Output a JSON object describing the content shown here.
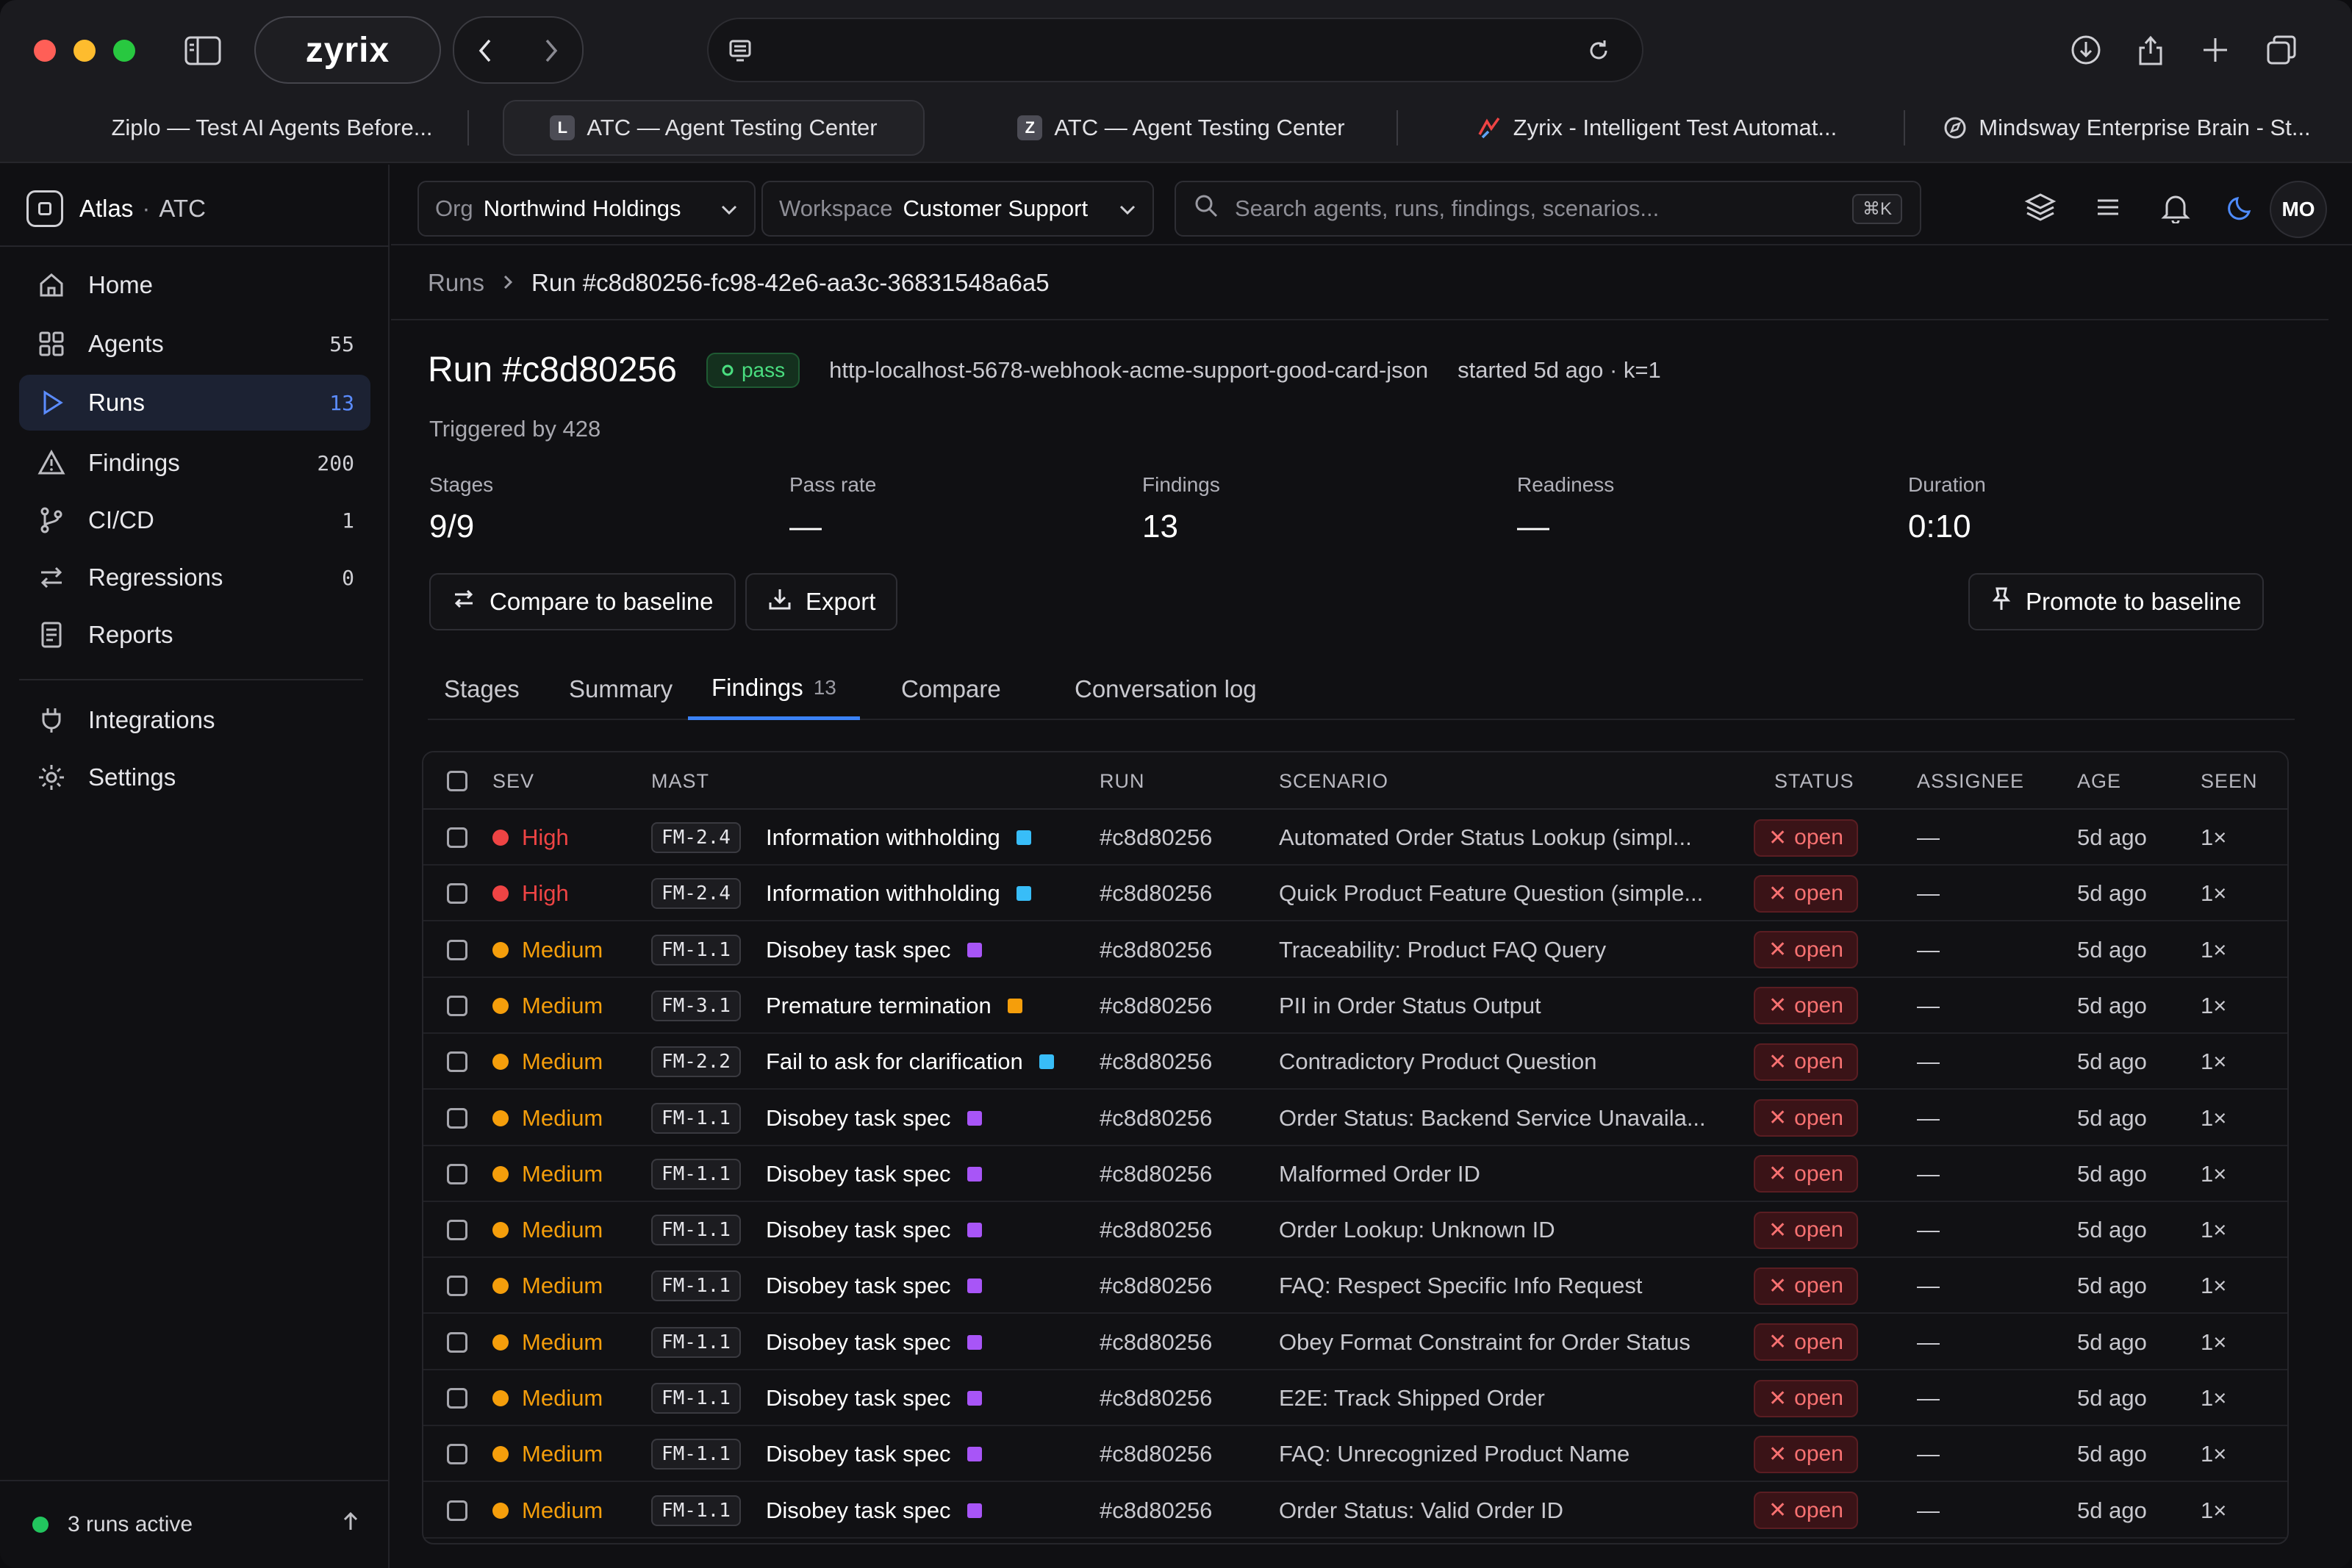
{
  "browser": {
    "brand": "zyrix",
    "tabs": [
      {
        "label": "Ziplo — Test AI Agents Before...",
        "favicon": ""
      },
      {
        "label": "ATC — Agent Testing Center",
        "favicon": "L"
      },
      {
        "label": "ATC — Agent Testing Center",
        "favicon": "Z"
      },
      {
        "label": "Zyrix - Intelligent Test Automat...",
        "favicon": ""
      },
      {
        "label": "Mindsway Enterprise Brain - St...",
        "favicon": ""
      }
    ]
  },
  "sidebar": {
    "app_name": "Atlas",
    "app_section": "ATC",
    "items": [
      {
        "label": "Home",
        "count": "",
        "icon": "home-icon"
      },
      {
        "label": "Agents",
        "count": "55",
        "icon": "grid-icon"
      },
      {
        "label": "Runs",
        "count": "13",
        "icon": "play-icon"
      },
      {
        "label": "Findings",
        "count": "200",
        "icon": "warning-icon"
      },
      {
        "label": "CI/CD",
        "count": "1",
        "icon": "branch-icon"
      },
      {
        "label": "Regressions",
        "count": "0",
        "icon": "swap-icon"
      },
      {
        "label": "Reports",
        "count": "",
        "icon": "report-icon"
      },
      {
        "label": "Integrations",
        "count": "",
        "icon": "plug-icon"
      },
      {
        "label": "Settings",
        "count": "",
        "icon": "gear-icon"
      }
    ],
    "footer": "3 runs active"
  },
  "topbar": {
    "org_label": "Org",
    "org_value": "Northwind Holdings",
    "workspace_label": "Workspace",
    "workspace_value": "Customer Support",
    "search_placeholder": "Search agents, runs, findings, scenarios...",
    "search_shortcut": "⌘K",
    "avatar": "MO"
  },
  "breadcrumb": {
    "parent": "Runs",
    "current": "Run #c8d80256-fc98-42e6-aa3c-36831548a6a5"
  },
  "run": {
    "title": "Run #c8d80256",
    "status": "pass",
    "slug": "http-localhost-5678-webhook-acme-support-good-card-json",
    "meta": "started 5d ago · k=1",
    "triggered": "Triggered by 428",
    "stats": [
      {
        "label": "Stages",
        "value": "9/9"
      },
      {
        "label": "Pass rate",
        "value": "—"
      },
      {
        "label": "Findings",
        "value": "13"
      },
      {
        "label": "Readiness",
        "value": "—"
      },
      {
        "label": "Duration",
        "value": "0:10"
      }
    ]
  },
  "actions": {
    "compare": "Compare to baseline",
    "export": "Export",
    "promote": "Promote to baseline"
  },
  "tabs": [
    {
      "label": "Stages",
      "count": ""
    },
    {
      "label": "Summary",
      "count": ""
    },
    {
      "label": "Findings",
      "count": "13"
    },
    {
      "label": "Compare",
      "count": ""
    },
    {
      "label": "Conversation log",
      "count": ""
    }
  ],
  "table": {
    "columns": [
      "SEV",
      "MAST",
      "RUN",
      "SCENARIO",
      "STATUS",
      "ASSIGNEE",
      "AGE",
      "SEEN"
    ],
    "colors": {
      "high": "#ef4444",
      "medium": "#f59e0b",
      "blue": "#38bdf8",
      "purple": "#a855f7",
      "orange": "#f59e0b"
    },
    "rows": [
      {
        "sev": "High",
        "code": "FM-2.4",
        "mast": "Information withholding",
        "tag": "blue",
        "run": "#c8d80256",
        "scenario": "Automated Order Status Lookup (simpl...",
        "status": "open",
        "assignee": "—",
        "age": "5d ago",
        "seen": "1×"
      },
      {
        "sev": "High",
        "code": "FM-2.4",
        "mast": "Information withholding",
        "tag": "blue",
        "run": "#c8d80256",
        "scenario": "Quick Product Feature Question (simple...",
        "status": "open",
        "assignee": "—",
        "age": "5d ago",
        "seen": "1×"
      },
      {
        "sev": "Medium",
        "code": "FM-1.1",
        "mast": "Disobey task spec",
        "tag": "purple",
        "run": "#c8d80256",
        "scenario": "Traceability: Product FAQ Query",
        "status": "open",
        "assignee": "—",
        "age": "5d ago",
        "seen": "1×"
      },
      {
        "sev": "Medium",
        "code": "FM-3.1",
        "mast": "Premature termination",
        "tag": "orange",
        "run": "#c8d80256",
        "scenario": "PII in Order Status Output",
        "status": "open",
        "assignee": "—",
        "age": "5d ago",
        "seen": "1×"
      },
      {
        "sev": "Medium",
        "code": "FM-2.2",
        "mast": "Fail to ask for clarification",
        "tag": "blue",
        "run": "#c8d80256",
        "scenario": "Contradictory Product Question",
        "status": "open",
        "assignee": "—",
        "age": "5d ago",
        "seen": "1×"
      },
      {
        "sev": "Medium",
        "code": "FM-1.1",
        "mast": "Disobey task spec",
        "tag": "purple",
        "run": "#c8d80256",
        "scenario": "Order Status: Backend Service Unavaila...",
        "status": "open",
        "assignee": "—",
        "age": "5d ago",
        "seen": "1×"
      },
      {
        "sev": "Medium",
        "code": "FM-1.1",
        "mast": "Disobey task spec",
        "tag": "purple",
        "run": "#c8d80256",
        "scenario": "Malformed Order ID",
        "status": "open",
        "assignee": "—",
        "age": "5d ago",
        "seen": "1×"
      },
      {
        "sev": "Medium",
        "code": "FM-1.1",
        "mast": "Disobey task spec",
        "tag": "purple",
        "run": "#c8d80256",
        "scenario": "Order Lookup: Unknown ID",
        "status": "open",
        "assignee": "—",
        "age": "5d ago",
        "seen": "1×"
      },
      {
        "sev": "Medium",
        "code": "FM-1.1",
        "mast": "Disobey task spec",
        "tag": "purple",
        "run": "#c8d80256",
        "scenario": "FAQ: Respect Specific Info Request",
        "status": "open",
        "assignee": "—",
        "age": "5d ago",
        "seen": "1×"
      },
      {
        "sev": "Medium",
        "code": "FM-1.1",
        "mast": "Disobey task spec",
        "tag": "purple",
        "run": "#c8d80256",
        "scenario": "Obey Format Constraint for Order Status",
        "status": "open",
        "assignee": "—",
        "age": "5d ago",
        "seen": "1×"
      },
      {
        "sev": "Medium",
        "code": "FM-1.1",
        "mast": "Disobey task spec",
        "tag": "purple",
        "run": "#c8d80256",
        "scenario": "E2E: Track Shipped Order",
        "status": "open",
        "assignee": "—",
        "age": "5d ago",
        "seen": "1×"
      },
      {
        "sev": "Medium",
        "code": "FM-1.1",
        "mast": "Disobey task spec",
        "tag": "purple",
        "run": "#c8d80256",
        "scenario": "FAQ: Unrecognized Product Name",
        "status": "open",
        "assignee": "—",
        "age": "5d ago",
        "seen": "1×"
      },
      {
        "sev": "Medium",
        "code": "FM-1.1",
        "mast": "Disobey task spec",
        "tag": "purple",
        "run": "#c8d80256",
        "scenario": "Order Status: Valid Order ID",
        "status": "open",
        "assignee": "—",
        "age": "5d ago",
        "seen": "1×"
      }
    ]
  }
}
